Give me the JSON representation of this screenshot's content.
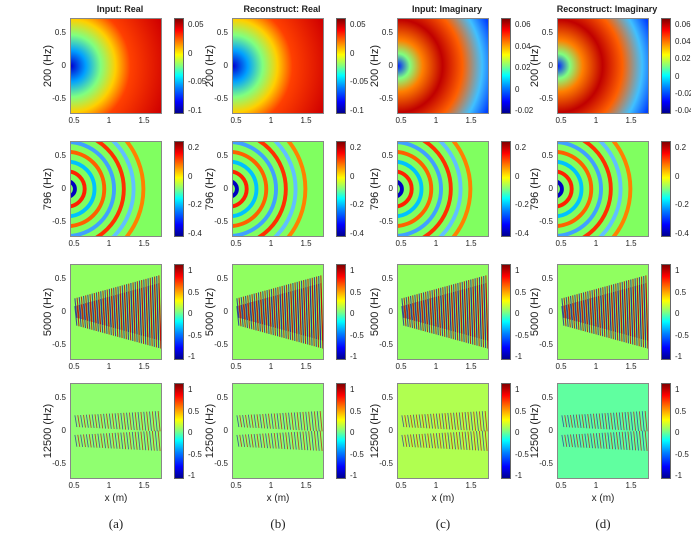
{
  "columns": [
    {
      "title": "Input: Real",
      "cbars": [
        [
          "0.05",
          "0",
          "-0.05",
          "-0.1"
        ],
        [
          "0.2",
          "0",
          "-0.2",
          "-0.4"
        ],
        [
          "1",
          "0.5",
          "0",
          "-0.5",
          "-1"
        ],
        [
          "1",
          "0.5",
          "0",
          "-0.5",
          "-1"
        ]
      ]
    },
    {
      "title": "Reconstruct: Real",
      "cbars": [
        [
          "0.05",
          "0",
          "-0.05",
          "-0.1"
        ],
        [
          "0.2",
          "0",
          "-0.2",
          "-0.4"
        ],
        [
          "1",
          "0.5",
          "0",
          "-0.5",
          "-1"
        ],
        [
          "1",
          "0.5",
          "0",
          "-0.5",
          "-1"
        ]
      ]
    },
    {
      "title": "Input: Imaginary",
      "cbars": [
        [
          "0.06",
          "0.04",
          "0.02",
          "0",
          "-0.02"
        ],
        [
          "0.2",
          "0",
          "-0.2",
          "-0.4"
        ],
        [
          "1",
          "0.5",
          "0",
          "-0.5",
          "-1"
        ],
        [
          "1",
          "0.5",
          "0",
          "-0.5",
          "-1"
        ]
      ]
    },
    {
      "title": "Reconstruct: Imaginary",
      "cbars": [
        [
          "0.06",
          "0.04",
          "0.02",
          "0",
          "-0.02",
          "-0.04"
        ],
        [
          "0.2",
          "0",
          "-0.2",
          "-0.4"
        ],
        [
          "1",
          "0.5",
          "0",
          "-0.5",
          "-1"
        ],
        [
          "1",
          "0.5",
          "0",
          "-0.5",
          "-1"
        ]
      ]
    }
  ],
  "rows": [
    "200 (Hz)",
    "796 (Hz)",
    "5000 (Hz)",
    "12500 (Hz)"
  ],
  "yticks": [
    "0.5",
    "0",
    "-0.5"
  ],
  "xticks": [
    "0.5",
    "1",
    "1.5"
  ],
  "xlabel": "x (m)",
  "sublabels": [
    "(a)",
    "(b)",
    "(c)",
    "(d)"
  ]
}
